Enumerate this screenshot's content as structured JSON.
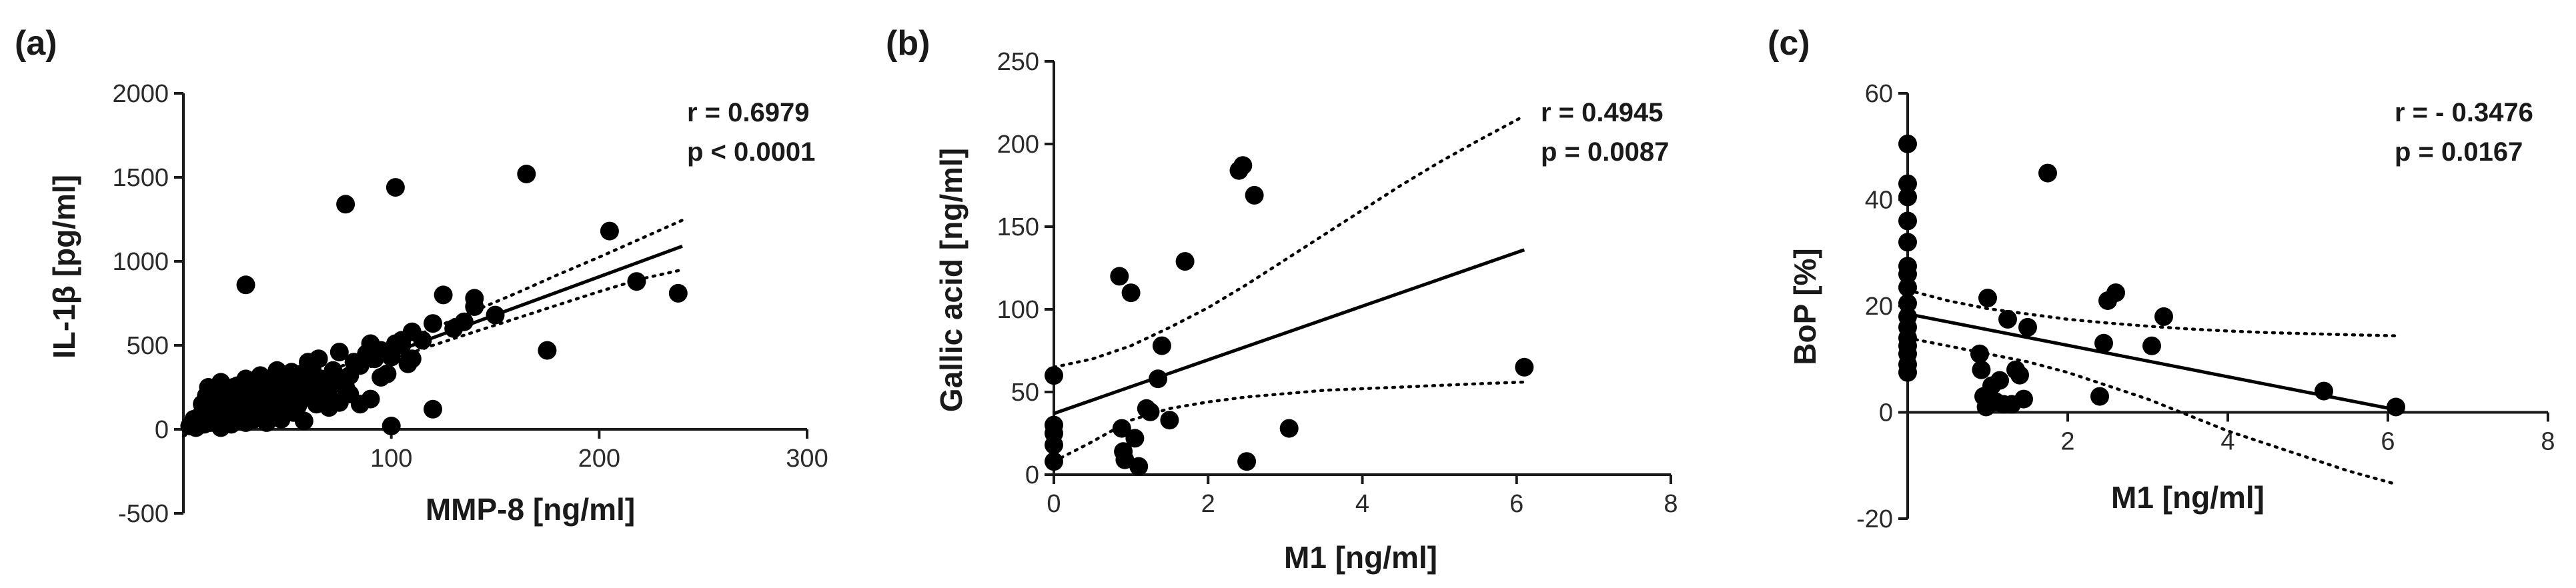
{
  "chart_data": [
    {
      "id": "a",
      "type": "scatter",
      "panel_label": "(a)",
      "xlabel": "MMP-8 [ng/ml]",
      "ylabel": "IL-1β [pg/ml]",
      "xlim": [
        0,
        300
      ],
      "ylim": [
        -500,
        2000
      ],
      "xticks": [
        100,
        200,
        300
      ],
      "xtick_labels": [
        "100",
        "200",
        "300"
      ],
      "yticks": [
        -500,
        0,
        500,
        1000,
        1500,
        2000
      ],
      "ytick_labels": [
        "-500",
        "0",
        "500",
        "1000",
        "1500",
        "2000"
      ],
      "x_axis_at": 0,
      "stats": [
        "r = 0.6979",
        "p < 0.0001"
      ],
      "fit": {
        "x": [
          0,
          240
        ],
        "y": [
          0,
          1090
        ]
      },
      "ci_upper": {
        "x": [
          0,
          20,
          40,
          60,
          80,
          100,
          120,
          140,
          160,
          180,
          200,
          220,
          240
        ],
        "y": [
          40,
          125,
          210,
          300,
          395,
          495,
          600,
          705,
          810,
          920,
          1025,
          1135,
          1245
        ]
      },
      "ci_lower": {
        "x": [
          0,
          20,
          40,
          60,
          80,
          100,
          120,
          140,
          160,
          180,
          200,
          220,
          240
        ],
        "y": [
          -40,
          60,
          155,
          240,
          330,
          415,
          500,
          580,
          660,
          740,
          820,
          895,
          950
        ]
      },
      "points": {
        "x": [
          3,
          5,
          6,
          8,
          9,
          10,
          11,
          12,
          12,
          13,
          14,
          15,
          16,
          16,
          17,
          18,
          18,
          19,
          20,
          21,
          22,
          22,
          23,
          24,
          25,
          26,
          27,
          28,
          29,
          30,
          30,
          31,
          32,
          33,
          34,
          35,
          36,
          37,
          38,
          38,
          39,
          40,
          41,
          42,
          43,
          44,
          45,
          45,
          46,
          47,
          48,
          49,
          50,
          51,
          52,
          53,
          54,
          55,
          56,
          57,
          58,
          58,
          60,
          61,
          62,
          63,
          64,
          65,
          66,
          67,
          68,
          70,
          72,
          74,
          75,
          78,
          80,
          82,
          85,
          88,
          90,
          92,
          95,
          98,
          100,
          102,
          105,
          108,
          110,
          115,
          120,
          125,
          130,
          135,
          140,
          12,
          15,
          18,
          20,
          24,
          28,
          32,
          36,
          40,
          44,
          48,
          55,
          60,
          65,
          70,
          75,
          80,
          85,
          90,
          95,
          100,
          105,
          110,
          120,
          140,
          150,
          165,
          175,
          205,
          218,
          238,
          30,
          78,
          102
        ],
        "y": [
          20,
          60,
          10,
          80,
          150,
          30,
          200,
          120,
          250,
          40,
          180,
          90,
          220,
          60,
          150,
          10,
          280,
          110,
          200,
          70,
          160,
          240,
          30,
          120,
          190,
          260,
          80,
          150,
          220,
          40,
          300,
          180,
          110,
          250,
          60,
          200,
          140,
          320,
          90,
          230,
          170,
          40,
          260,
          130,
          300,
          80,
          210,
          350,
          160,
          60,
          240,
          120,
          300,
          190,
          340,
          100,
          260,
          150,
          220,
          330,
          280,
          50,
          400,
          200,
          350,
          250,
          150,
          420,
          300,
          180,
          250,
          200,
          350,
          280,
          460,
          250,
          320,
          400,
          380,
          450,
          510,
          420,
          470,
          330,
          430,
          510,
          500,
          390,
          420,
          530,
          630,
          800,
          600,
          640,
          730,
          100,
          200,
          50,
          150,
          250,
          120,
          200,
          80,
          180,
          140,
          260,
          140,
          190,
          220,
          130,
          160,
          210,
          150,
          180,
          310,
          20,
          530,
          580,
          120,
          780,
          680,
          1520,
          470,
          1180,
          880,
          810,
          860,
          1340,
          1440
        ]
      }
    },
    {
      "id": "b",
      "type": "scatter",
      "panel_label": "(b)",
      "xlabel": "M1 [ng/ml]",
      "ylabel": "Gallic acid [ng/ml]",
      "xlim": [
        0,
        8
      ],
      "ylim": [
        0,
        250
      ],
      "xticks": [
        0,
        2,
        4,
        6,
        8
      ],
      "xtick_labels": [
        "0",
        "2",
        "4",
        "6",
        "8"
      ],
      "yticks": [
        0,
        50,
        100,
        150,
        200,
        250
      ],
      "ytick_labels": [
        "0",
        "50",
        "100",
        "150",
        "200",
        "250"
      ],
      "x_axis_at": 0,
      "stats": [
        "r = 0.4945",
        "p = 0.0087"
      ],
      "fit": {
        "x": [
          0,
          6.1
        ],
        "y": [
          37,
          136
        ]
      },
      "ci_upper": {
        "x": [
          0,
          0.5,
          1.0,
          1.5,
          2.0,
          2.5,
          3.0,
          3.5,
          4.0,
          4.5,
          5.0,
          5.5,
          6.1
        ],
        "y": [
          65,
          70,
          78,
          89,
          101,
          115,
          130,
          145,
          160,
          175,
          189,
          202,
          217
        ]
      },
      "ci_lower": {
        "x": [
          0,
          0.5,
          1.0,
          1.5,
          2.0,
          2.5,
          3.0,
          3.5,
          4.0,
          4.5,
          5.0,
          5.5,
          6.1
        ],
        "y": [
          8,
          20,
          33,
          40,
          44,
          47,
          49,
          51,
          52,
          53,
          54,
          55,
          56
        ]
      },
      "points": {
        "x": [
          0,
          0,
          0,
          0,
          0,
          0.85,
          0.88,
          0.9,
          0.92,
          1.0,
          1.05,
          1.1,
          1.2,
          1.25,
          1.35,
          1.4,
          1.5,
          1.7,
          2.4,
          2.45,
          2.5,
          2.6,
          3.05,
          6.1
        ],
        "y": [
          60,
          30,
          25,
          18,
          8,
          120,
          28,
          14,
          9,
          110,
          22,
          5,
          40,
          38,
          58,
          78,
          33,
          129,
          184,
          187,
          8,
          169,
          28,
          65
        ]
      }
    },
    {
      "id": "c",
      "type": "scatter",
      "panel_label": "(c)",
      "xlabel": "M1 [ng/ml]",
      "ylabel": "BoP [%]",
      "xlim": [
        0,
        8
      ],
      "ylim": [
        -20,
        60
      ],
      "xticks": [
        2,
        4,
        6,
        8
      ],
      "xtick_labels": [
        "2",
        "4",
        "6",
        "8"
      ],
      "yticks": [
        -20,
        0,
        20,
        40,
        60
      ],
      "ytick_labels": [
        "-20",
        "0",
        "20",
        "40",
        "60"
      ],
      "x_axis_at": 0,
      "stats": [
        "r = - 0.3476",
        "p = 0.0167"
      ],
      "fit": {
        "x": [
          0,
          6.1
        ],
        "y": [
          18.5,
          0.5
        ]
      },
      "ci_upper": {
        "x": [
          0,
          0.5,
          1.0,
          1.5,
          2.0,
          2.5,
          3.0,
          3.5,
          4.0,
          4.5,
          5.0,
          5.5,
          6.1
        ],
        "y": [
          23,
          21,
          19.5,
          18.5,
          17.5,
          16.8,
          16.2,
          15.7,
          15.3,
          15,
          14.8,
          14.6,
          14.4
        ]
      },
      "ci_lower": {
        "x": [
          0,
          0.5,
          1.0,
          1.5,
          2.0,
          2.5,
          3.0,
          3.5,
          4.0,
          4.5,
          5.0,
          5.5,
          6.1
        ],
        "y": [
          14,
          12.5,
          11,
          9.5,
          7.5,
          5,
          2.5,
          -0.5,
          -3.5,
          -6,
          -8.5,
          -11,
          -13.5
        ]
      },
      "points": {
        "x": [
          0,
          0,
          0,
          0,
          0,
          0,
          0,
          0,
          0,
          0,
          0,
          0,
          0,
          0,
          0,
          0,
          0.9,
          0.92,
          0.95,
          0.98,
          1.0,
          1.05,
          1.1,
          1.15,
          1.2,
          1.25,
          1.3,
          1.35,
          1.4,
          1.45,
          1.5,
          1.75,
          2.4,
          2.45,
          2.5,
          2.6,
          3.05,
          3.2,
          5.2,
          6.1
        ],
        "y": [
          50.5,
          43,
          40.5,
          36,
          32,
          27.5,
          26,
          23.5,
          20.5,
          18,
          16,
          14,
          12.5,
          11,
          9,
          7.5,
          11,
          8,
          3,
          1,
          21.5,
          5,
          2,
          6,
          1.5,
          17.5,
          1.5,
          8,
          7,
          2.5,
          16,
          45,
          3,
          13,
          21,
          22.5,
          12.5,
          18,
          4,
          1
        ]
      }
    }
  ]
}
